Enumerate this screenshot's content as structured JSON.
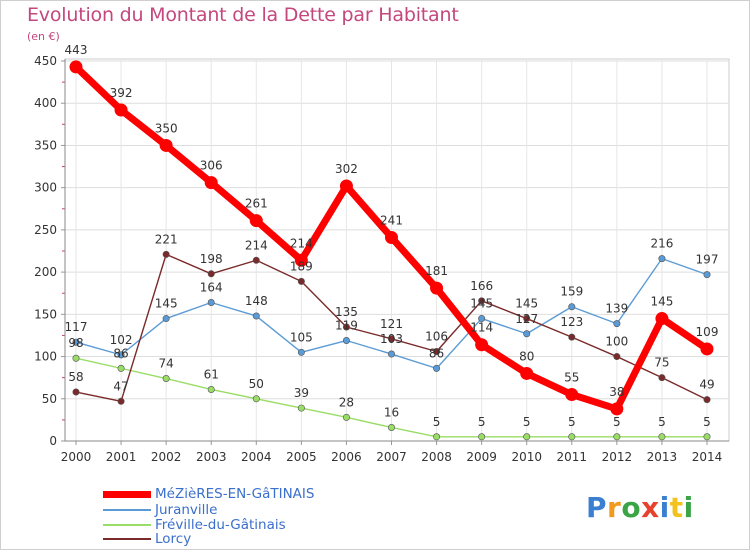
{
  "chart_data": {
    "type": "line",
    "title": "Evolution du Montant de la Dette par Habitant",
    "ylabel": "(en €)",
    "ylim": [
      0,
      450
    ],
    "yticks": [
      0,
      50,
      100,
      150,
      200,
      250,
      300,
      350,
      400,
      450
    ],
    "grid": true,
    "legend_position": "bottom",
    "categories": [
      "2000",
      "2001",
      "2002",
      "2003",
      "2004",
      "2005",
      "2006",
      "2007",
      "2008",
      "2009",
      "2010",
      "2011",
      "2012",
      "2013",
      "2014"
    ],
    "series": [
      {
        "name": "MéZièRES-EN-GâTINAIS",
        "color": "#ff0000",
        "emphasis": true,
        "values": [
          443,
          392,
          350,
          306,
          261,
          214,
          302,
          241,
          181,
          114,
          80,
          55,
          38,
          145,
          109
        ]
      },
      {
        "name": "Juranville",
        "color": "#5b9bd5",
        "values": [
          117,
          102,
          145,
          164,
          148,
          105,
          119,
          103,
          86,
          145,
          127,
          159,
          139,
          216,
          197
        ]
      },
      {
        "name": "Fréville-du-Gâtinais",
        "color": "#99dd66",
        "values": [
          98,
          86,
          74,
          61,
          50,
          39,
          28,
          16,
          5,
          5,
          5,
          5,
          5,
          5,
          5
        ]
      },
      {
        "name": "Lorcy",
        "color": "#7a2a2a",
        "values": [
          58,
          47,
          221,
          198,
          214,
          189,
          135,
          121,
          106,
          166,
          145,
          123,
          100,
          75,
          49
        ]
      }
    ]
  },
  "logo": {
    "letters": [
      {
        "char": "P",
        "color": "#3a7fd0"
      },
      {
        "char": "r",
        "color": "#f29a1d"
      },
      {
        "char": "o",
        "color": "#3aa447"
      },
      {
        "char": "x",
        "color": "#e8412c"
      },
      {
        "char": "i",
        "color": "#3a7fd0"
      },
      {
        "char": "t",
        "color": "#f2c21d"
      },
      {
        "char": "i",
        "color": "#3aa447"
      }
    ]
  }
}
